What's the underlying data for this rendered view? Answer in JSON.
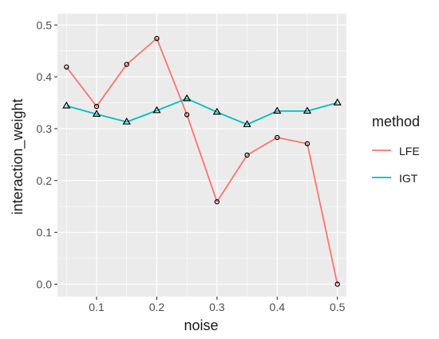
{
  "chart_data": {
    "type": "line",
    "title": "",
    "xlabel": "noise",
    "ylabel": "interaction_weight",
    "xlim": [
      0.035,
      0.515
    ],
    "ylim": [
      -0.024,
      0.522
    ],
    "x_ticks": [
      0.1,
      0.2,
      0.3,
      0.4,
      0.5
    ],
    "x_tick_labels": [
      "0.1",
      "0.2",
      "0.3",
      "0.4",
      "0.5"
    ],
    "y_ticks": [
      0.0,
      0.1,
      0.2,
      0.3,
      0.4,
      0.5
    ],
    "y_tick_labels": [
      "0.0",
      "0.1",
      "0.2",
      "0.3",
      "0.4",
      "0.5"
    ],
    "grid": true,
    "legend_position": "right",
    "legend_title": "method",
    "x": [
      0.05,
      0.1,
      0.15,
      0.2,
      0.25,
      0.3,
      0.35,
      0.4,
      0.45,
      0.5
    ],
    "series": [
      {
        "name": "LFE",
        "color": "#F8766D",
        "marker": "circle",
        "values": [
          0.419,
          0.343,
          0.424,
          0.474,
          0.327,
          0.159,
          0.249,
          0.283,
          0.271,
          0.0
        ]
      },
      {
        "name": "IGT",
        "color": "#00BFC4",
        "marker": "triangle",
        "values": [
          0.344,
          0.328,
          0.313,
          0.335,
          0.358,
          0.332,
          0.308,
          0.334,
          0.334,
          0.35
        ]
      }
    ]
  },
  "colors": {
    "panel_background": "#EBEBEB",
    "grid_major": "#FFFFFF",
    "text": "#1A1A1A",
    "tick_text": "#4D4D4D"
  }
}
